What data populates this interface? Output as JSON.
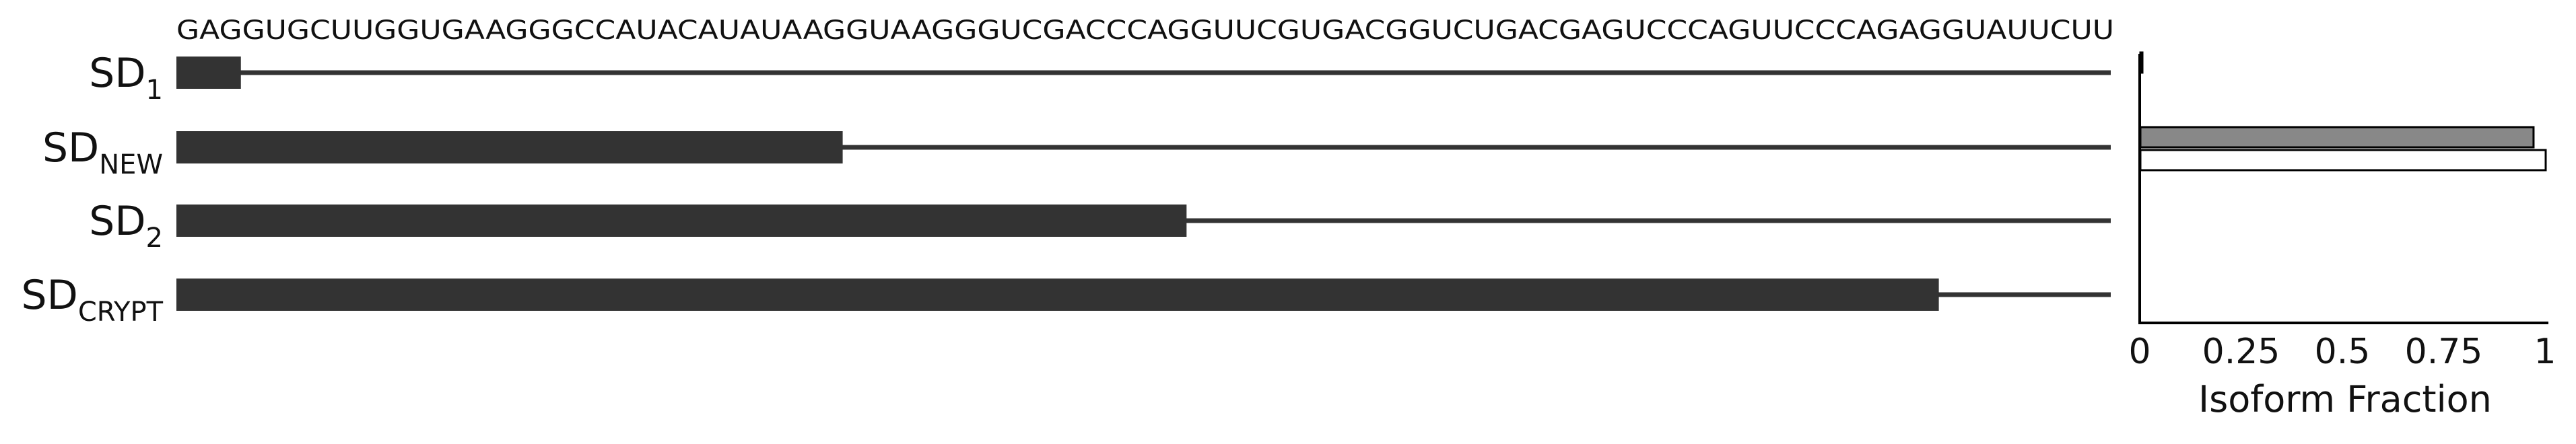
{
  "chart_data": [
    {
      "type": "bar",
      "orientation": "horizontal",
      "sequence": "GAGGUGCUUGGUGAAGGGCCAUACAUAUAAGGUAAGGGUCGACCCAGGUUCGUGACGGUCUGACGAGUCCCAGUUCCCAGAGGUAUUCUU",
      "rows": [
        {
          "label": "SD",
          "subscript": "1",
          "exon_end": 3
        },
        {
          "label": "SD",
          "subscript": "NEW",
          "exon_end": 31
        },
        {
          "label": "SD",
          "subscript": "2",
          "exon_end": 47
        },
        {
          "label": "SD",
          "subscript": "CRYPT",
          "exon_end": 82
        }
      ],
      "colors": {
        "exon": "#333333",
        "intron": "#333333"
      }
    },
    {
      "type": "bar",
      "orientation": "horizontal",
      "xlabel": "Isoform Fraction",
      "xlim": [
        0,
        1
      ],
      "xticks": [
        "0",
        "0.25",
        "0.5",
        "0.75",
        "1"
      ],
      "categories": [
        "SD1",
        "SDNEW",
        "SD2",
        "SDCRYPT"
      ],
      "series": [
        {
          "values": [
            0.005,
            0.97,
            0.0,
            0.0
          ],
          "color": "#888888"
        },
        {
          "values": [
            0.0,
            1.0,
            0.0,
            0.0
          ],
          "color": "#ffffff"
        }
      ]
    }
  ]
}
